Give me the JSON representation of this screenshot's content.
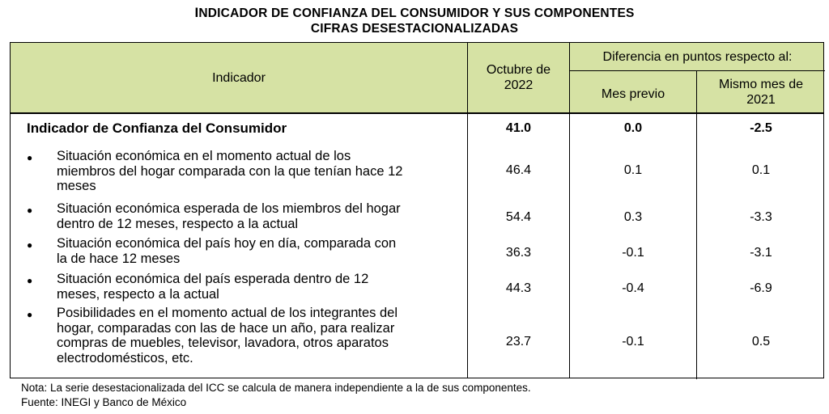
{
  "title": {
    "line1_first": "I",
    "line1_rest": "NDICADOR DE CONFIANZA DEL CONSUMIDOR Y SUS COMPONENTES",
    "line2": "CIFRAS DESESTACIONALIZADAS"
  },
  "header": {
    "indicador": "Indicador",
    "octubre_line1": "Octubre de",
    "octubre_line2": "2022",
    "diferencia": "Diferencia en puntos respecto al:",
    "mes_previo": "Mes previo",
    "mismo_mes_line1": "Mismo mes de",
    "mismo_mes_line2": "2021"
  },
  "main_row": {
    "label": "Indicador de Confianza del Consumidor",
    "value": "41.0",
    "mes_previo": "0.0",
    "mismo_mes": "-2.5"
  },
  "rows": [
    {
      "lines": [
        "Situación económica en el momento actual de los",
        "miembros del hogar comparada con la que tenían hace 12",
        "meses"
      ],
      "value": "46.4",
      "mes_previo": "0.1",
      "mismo_mes": "0.1"
    },
    {
      "lines": [
        "Situación económica esperada de los miembros del hogar",
        "dentro de 12 meses, respecto a la actual"
      ],
      "value": "54.4",
      "mes_previo": "0.3",
      "mismo_mes": "-3.3"
    },
    {
      "lines": [
        "Situación económica del país hoy en día, comparada con",
        "la de hace 12 meses"
      ],
      "value": "36.3",
      "mes_previo": "-0.1",
      "mismo_mes": "-3.1"
    },
    {
      "lines": [
        "Situación económica del país esperada dentro de 12",
        "meses, respecto a la actual"
      ],
      "value": "44.3",
      "mes_previo": "-0.4",
      "mismo_mes": "-6.9"
    },
    {
      "lines": [
        "Posibilidades en el momento actual de los integrantes del",
        "hogar, comparadas con las de hace un año, para realizar",
        "compras de muebles, televisor, lavadora, otros aparatos",
        "electrodomésticos, etc."
      ],
      "value": "23.7",
      "mes_previo": "-0.1",
      "mismo_mes": "0.5"
    }
  ],
  "bullet_glyph": "●",
  "footer": {
    "nota": "Nota: La serie desestacionalizada del ICC se calcula de manera independiente a la de sus componentes.",
    "fuente": "Fuente: INEGI y Banco de México"
  },
  "colors": {
    "header_bg": "#d6e2a4"
  }
}
